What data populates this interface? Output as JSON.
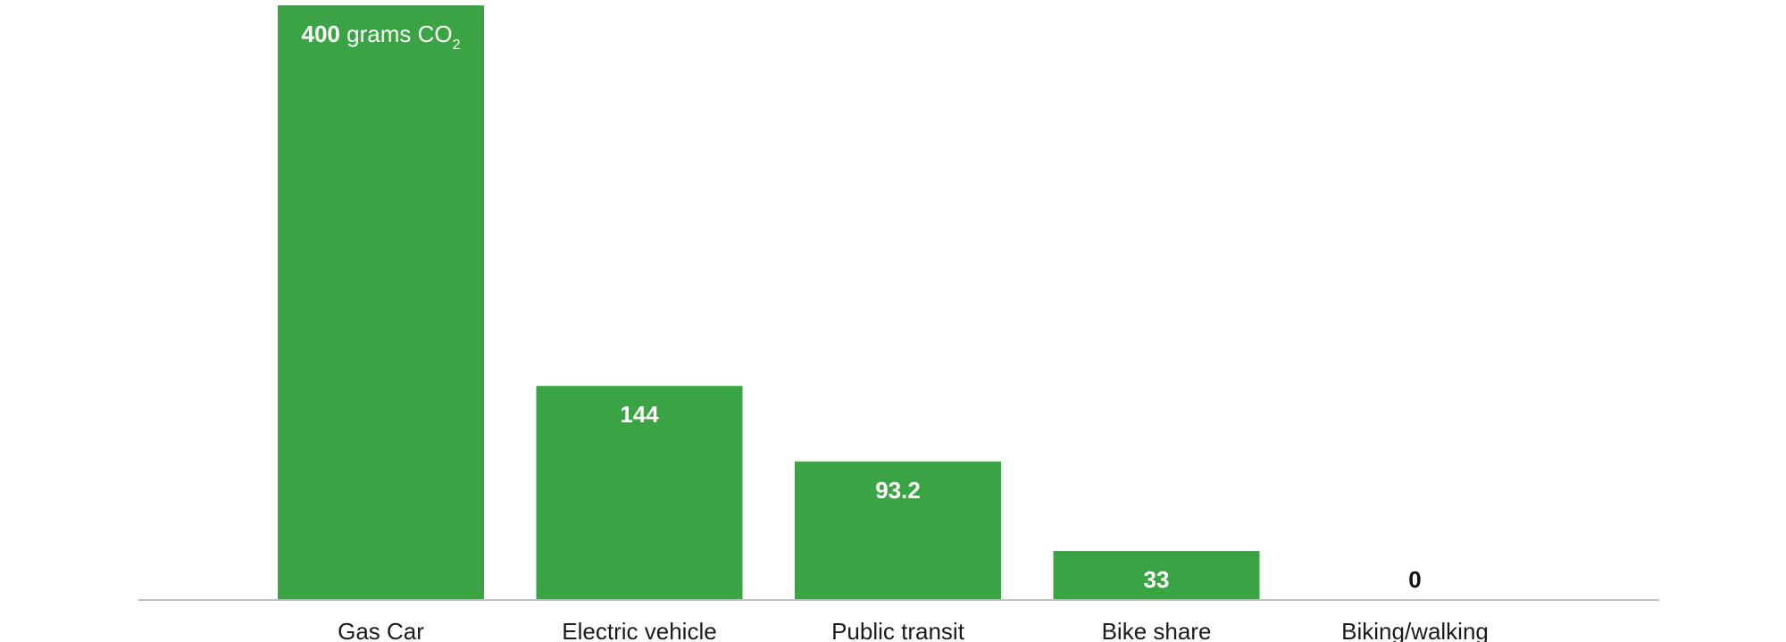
{
  "chart_data": {
    "type": "bar",
    "categories": [
      "Gas Car",
      "Electric vehicle",
      "Public transit",
      "Bike share",
      "Biking/walking"
    ],
    "values": [
      400,
      144,
      93.2,
      33,
      0
    ],
    "value_labels": [
      "400",
      "144",
      "93.2",
      "33",
      "0"
    ],
    "first_label_unit": "grams CO",
    "first_label_subscript": "2",
    "title": "",
    "xlabel": "",
    "ylabel": "",
    "ylim": [
      0,
      400
    ],
    "grid": false,
    "legend": "none",
    "colors": {
      "bar": "#3aa343",
      "label_inside": "#ffffff",
      "label_outside": "#111111",
      "axis": "#bfbfbf"
    }
  }
}
